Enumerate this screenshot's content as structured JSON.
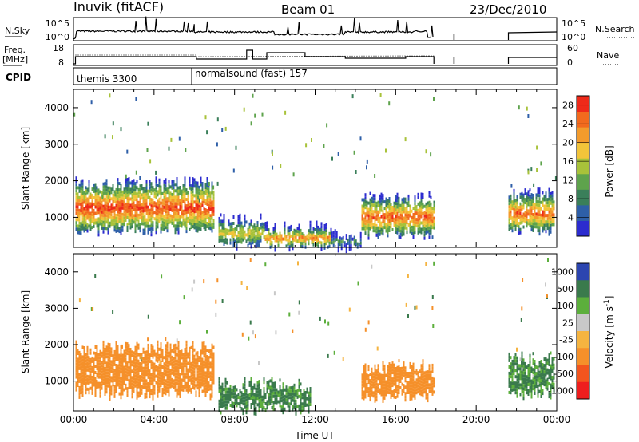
{
  "header": {
    "station": "Inuvik (fitACF)",
    "beam": "Beam 01",
    "date": "23/Dec/2010"
  },
  "nsky_panel": {
    "left_label": "N.Sky",
    "right_label": "N.Search",
    "left_ticks": [
      "10^5",
      "10^0"
    ],
    "right_ticks": [
      "10^5",
      "10^0"
    ]
  },
  "freq_panel": {
    "left_label_top": "Freq.",
    "left_label_bottom": "[MHz]",
    "right_label": "Nave",
    "left_ticks": [
      "18",
      "8"
    ],
    "right_ticks": [
      "60",
      "0"
    ]
  },
  "cpid_panel": {
    "label": "CPID",
    "modes": [
      "themis 3300",
      "normalsound (fast) 157"
    ]
  },
  "colors": {
    "power_scale": [
      "#2c2ccf",
      "#2e5fa8",
      "#3a7f5a",
      "#5ea34c",
      "#a8c23a",
      "#f2c43a",
      "#f39b2c",
      "#f26a1e",
      "#ee2a1a"
    ],
    "velocity_scale": [
      "#2c45b0",
      "#3a7a4c",
      "#5caf3c",
      "#c8c8c8",
      "#f5b440",
      "#f5902a",
      "#f2551e",
      "#ee1e1e"
    ]
  },
  "chart_data": [
    {
      "type": "heatmap",
      "title": "",
      "ylabel": "Slant Range [km]",
      "xlabel": "",
      "x_ticks": [
        "00:00",
        "04:00",
        "08:00",
        "12:00",
        "16:00",
        "20:00",
        "00:00"
      ],
      "x_range_hours": [
        0,
        24
      ],
      "y_ticks": [
        "1000",
        "2000",
        "3000",
        "4000"
      ],
      "ylim": [
        180,
        4500
      ],
      "colorbar": {
        "label": "Power [dB]",
        "ticks": [
          "4",
          "8",
          "12",
          "16",
          "20",
          "24",
          "28"
        ],
        "range": [
          0,
          30
        ]
      },
      "regions": [
        {
          "t0": 0.1,
          "t1": 7.0,
          "r0": 700,
          "r1": 1900,
          "peak": 28
        },
        {
          "t0": 7.2,
          "t1": 9.5,
          "r0": 300,
          "r1": 900,
          "peak": 18
        },
        {
          "t0": 9.5,
          "t1": 12.8,
          "r0": 250,
          "r1": 700,
          "peak": 24
        },
        {
          "t0": 12.8,
          "t1": 14.3,
          "r0": 250,
          "r1": 500,
          "peak": 10
        },
        {
          "t0": 14.3,
          "t1": 17.9,
          "r0": 600,
          "r1": 1500,
          "peak": 26
        },
        {
          "t0": 21.6,
          "t1": 23.9,
          "r0": 700,
          "r1": 1600,
          "peak": 26
        }
      ]
    },
    {
      "type": "heatmap",
      "title": "",
      "ylabel": "Slant Range [km]",
      "xlabel": "Time UT",
      "x_ticks": [
        "00:00",
        "04:00",
        "08:00",
        "12:00",
        "16:00",
        "20:00",
        "00:00"
      ],
      "x_range_hours": [
        0,
        24
      ],
      "y_ticks": [
        "1000",
        "2000",
        "3000",
        "4000"
      ],
      "ylim": [
        180,
        4500
      ],
      "colorbar": {
        "label": "Velocity [m s^-1]",
        "ticks": [
          "1000",
          "500",
          "100",
          "25",
          "-25",
          "-100",
          "-500",
          "-1000"
        ]
      },
      "regions": [
        {
          "t0": 0.1,
          "t1": 7.0,
          "r0": 700,
          "r1": 1900,
          "vel": -300
        },
        {
          "t0": 7.2,
          "t1": 11.8,
          "r0": 250,
          "r1": 900,
          "vel": 150
        },
        {
          "t0": 14.3,
          "t1": 17.9,
          "r0": 600,
          "r1": 1400,
          "vel": -200
        },
        {
          "t0": 21.6,
          "t1": 23.9,
          "r0": 700,
          "r1": 1600,
          "vel": 120
        }
      ]
    }
  ]
}
